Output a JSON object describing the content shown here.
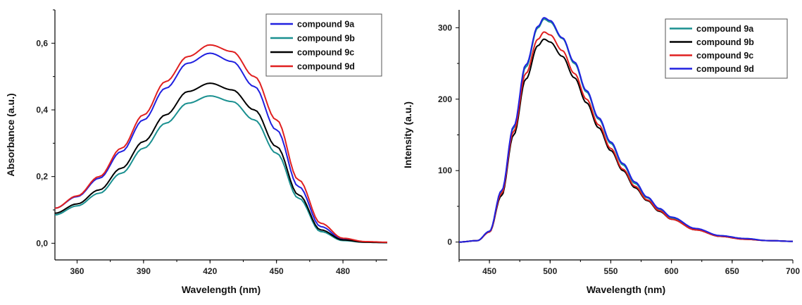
{
  "chart_data": [
    {
      "type": "line",
      "title": "",
      "xlabel": "Wavelength (nm)",
      "ylabel": "Absorbance (a.u.)",
      "xlim": [
        350,
        500
      ],
      "ylim": [
        -0.05,
        0.7
      ],
      "xticks": [
        360,
        390,
        420,
        450,
        480
      ],
      "xtick_labels": [
        "360",
        "390",
        "420",
        "450",
        "480"
      ],
      "yticks": [
        0.0,
        0.2,
        0.4,
        0.6
      ],
      "ytick_labels": [
        "0,0",
        "0,2",
        "0,4",
        "0,6"
      ],
      "legend_position": "top-right",
      "grid": false,
      "series": [
        {
          "name": "compound 9a",
          "color": "#2020e0",
          "x": [
            350,
            360,
            370,
            380,
            390,
            400,
            410,
            420,
            430,
            440,
            450,
            460,
            470,
            480,
            490,
            500
          ],
          "y": [
            0.105,
            0.14,
            0.195,
            0.275,
            0.37,
            0.465,
            0.54,
            0.57,
            0.545,
            0.47,
            0.34,
            0.17,
            0.05,
            0.012,
            0.004,
            0.002
          ]
        },
        {
          "name": "compound 9b",
          "color": "#1a9090",
          "x": [
            350,
            360,
            370,
            380,
            390,
            400,
            410,
            420,
            430,
            440,
            450,
            460,
            470,
            480,
            490,
            500
          ],
          "y": [
            0.085,
            0.112,
            0.15,
            0.21,
            0.285,
            0.36,
            0.42,
            0.442,
            0.425,
            0.37,
            0.27,
            0.135,
            0.035,
            0.008,
            0.003,
            0.002
          ]
        },
        {
          "name": "compound 9c",
          "color": "#000000",
          "x": [
            350,
            360,
            370,
            380,
            390,
            400,
            410,
            420,
            430,
            440,
            450,
            460,
            470,
            480,
            490,
            500
          ],
          "y": [
            0.09,
            0.118,
            0.16,
            0.225,
            0.305,
            0.385,
            0.455,
            0.48,
            0.46,
            0.4,
            0.29,
            0.145,
            0.04,
            0.01,
            0.003,
            0.002
          ]
        },
        {
          "name": "compound 9d",
          "color": "#e02020",
          "x": [
            350,
            360,
            370,
            380,
            390,
            400,
            410,
            420,
            430,
            440,
            450,
            460,
            470,
            480,
            490,
            500
          ],
          "y": [
            0.105,
            0.142,
            0.2,
            0.285,
            0.385,
            0.485,
            0.56,
            0.595,
            0.575,
            0.5,
            0.37,
            0.19,
            0.06,
            0.015,
            0.005,
            0.003
          ]
        }
      ]
    },
    {
      "type": "line",
      "title": "",
      "xlabel": "Wavelength (nm)",
      "ylabel": "Intensity (a.u.)",
      "xlim": [
        425,
        700
      ],
      "ylim": [
        -25,
        325
      ],
      "xticks": [
        450,
        500,
        550,
        600,
        650,
        700
      ],
      "xtick_labels": [
        "450",
        "500",
        "550",
        "600",
        "650",
        "700"
      ],
      "yticks": [
        0,
        100,
        200,
        300
      ],
      "ytick_labels": [
        "0",
        "100",
        "200",
        "300"
      ],
      "legend_position": "top-right",
      "grid": false,
      "series": [
        {
          "name": "compound 9a",
          "color": "#1a9090",
          "x": [
            425,
            440,
            450,
            460,
            470,
            480,
            490,
            495,
            500,
            510,
            520,
            530,
            540,
            550,
            560,
            570,
            580,
            590,
            600,
            620,
            640,
            660,
            680,
            700
          ],
          "y": [
            0,
            2,
            15,
            70,
            160,
            245,
            300,
            312,
            308,
            285,
            250,
            210,
            172,
            138,
            108,
            82,
            62,
            46,
            34,
            18,
            9,
            5,
            2,
            1
          ]
        },
        {
          "name": "compound 9b",
          "color": "#000000",
          "x": [
            425,
            440,
            450,
            460,
            470,
            480,
            490,
            495,
            500,
            510,
            520,
            530,
            540,
            550,
            560,
            570,
            580,
            590,
            600,
            620,
            640,
            660,
            680,
            700
          ],
          "y": [
            0,
            2,
            14,
            65,
            150,
            228,
            275,
            284,
            280,
            260,
            230,
            195,
            160,
            128,
            100,
            76,
            58,
            43,
            32,
            17,
            8,
            4,
            2,
            1
          ]
        },
        {
          "name": "compound 9c",
          "color": "#e02020",
          "x": [
            425,
            440,
            450,
            460,
            470,
            480,
            490,
            495,
            500,
            510,
            520,
            530,
            540,
            550,
            560,
            570,
            580,
            590,
            600,
            620,
            640,
            660,
            680,
            700
          ],
          "y": [
            0,
            2,
            14,
            68,
            155,
            236,
            284,
            294,
            290,
            268,
            236,
            200,
            164,
            131,
            102,
            78,
            59,
            44,
            32,
            17,
            8,
            4,
            2,
            1
          ]
        },
        {
          "name": "compound 9d",
          "color": "#2020e0",
          "x": [
            425,
            440,
            450,
            460,
            470,
            480,
            490,
            495,
            500,
            510,
            520,
            530,
            540,
            550,
            560,
            570,
            580,
            590,
            600,
            620,
            640,
            660,
            680,
            700
          ],
          "y": [
            0,
            2,
            15,
            72,
            162,
            248,
            302,
            314,
            310,
            286,
            252,
            212,
            174,
            140,
            110,
            84,
            63,
            47,
            35,
            19,
            9,
            5,
            2,
            1
          ]
        }
      ]
    }
  ]
}
